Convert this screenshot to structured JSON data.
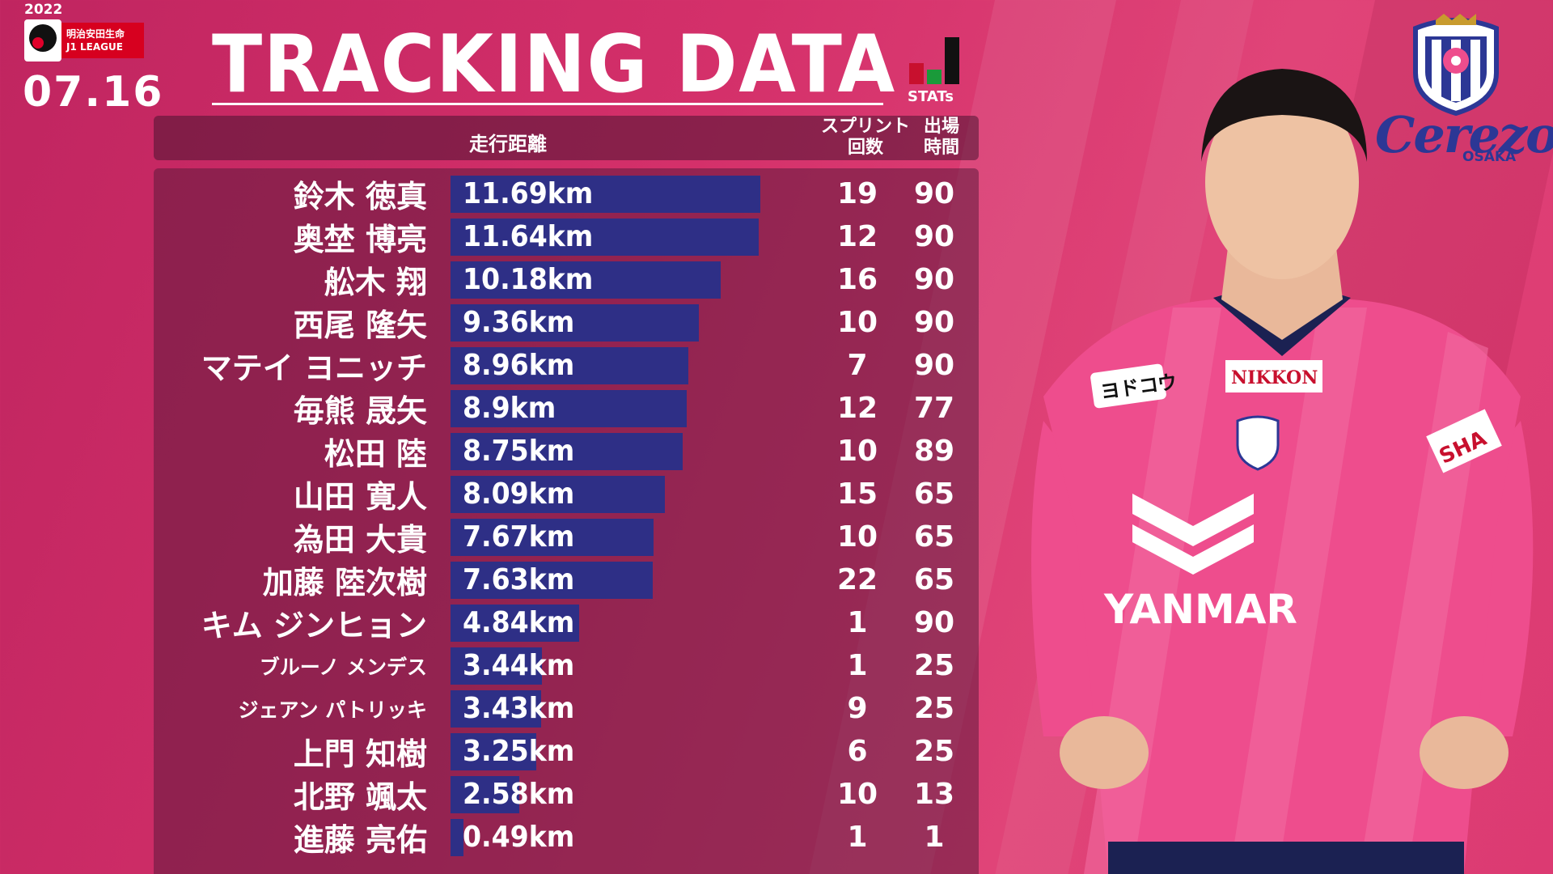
{
  "league": {
    "year": "2022",
    "sponsor": "明治安田生命",
    "name": "J1 LEAGUE",
    "match_date": "07.16"
  },
  "title": "TRACKING DATA",
  "stats_logo_text": "STATs",
  "table": {
    "header_distance": "走行距離",
    "header_sprint": [
      "スプリント",
      "回数"
    ],
    "header_time": [
      "出場",
      "時間"
    ],
    "max_km": 11.69,
    "rows": [
      {
        "name": "鈴木 徳真",
        "distance": "11.69km",
        "km": 11.69,
        "sprints": "19",
        "minutes": "90"
      },
      {
        "name": "奥埜 博亮",
        "distance": "11.64km",
        "km": 11.64,
        "sprints": "12",
        "minutes": "90"
      },
      {
        "name": "舩木 翔",
        "distance": "10.18km",
        "km": 10.18,
        "sprints": "16",
        "minutes": "90"
      },
      {
        "name": "西尾 隆矢",
        "distance": "9.36km",
        "km": 9.36,
        "sprints": "10",
        "minutes": "90"
      },
      {
        "name": "マテイ ヨニッチ",
        "distance": "8.96km",
        "km": 8.96,
        "sprints": "7",
        "minutes": "90"
      },
      {
        "name": "毎熊 晟矢",
        "distance": "8.9km",
        "km": 8.9,
        "sprints": "12",
        "minutes": "77"
      },
      {
        "name": "松田 陸",
        "distance": "8.75km",
        "km": 8.75,
        "sprints": "10",
        "minutes": "89"
      },
      {
        "name": "山田 寛人",
        "distance": "8.09km",
        "km": 8.09,
        "sprints": "15",
        "minutes": "65"
      },
      {
        "name": "為田 大貴",
        "distance": "7.67km",
        "km": 7.67,
        "sprints": "10",
        "minutes": "65"
      },
      {
        "name": "加藤 陸次樹",
        "distance": "7.63km",
        "km": 7.63,
        "sprints": "22",
        "minutes": "65"
      },
      {
        "name": "キム ジンヒョン",
        "distance": "4.84km",
        "km": 4.84,
        "sprints": "1",
        "minutes": "90"
      },
      {
        "name": "ブルーノ メンデス",
        "distance": "3.44km",
        "km": 3.44,
        "sprints": "1",
        "minutes": "25",
        "small": true
      },
      {
        "name": "ジェアン パトリッキ",
        "distance": "3.43km",
        "km": 3.43,
        "sprints": "9",
        "minutes": "25",
        "small": true
      },
      {
        "name": "上門 知樹",
        "distance": "3.25km",
        "km": 3.25,
        "sprints": "6",
        "minutes": "25"
      },
      {
        "name": "北野 颯太",
        "distance": "2.58km",
        "km": 2.58,
        "sprints": "10",
        "minutes": "13"
      },
      {
        "name": "進藤 亮佑",
        "distance": "0.49km",
        "km": 0.49,
        "sprints": "1",
        "minutes": "1"
      }
    ]
  },
  "club": {
    "wordmark": "Cerezo",
    "city": "OSAKA",
    "crest_icon": "cerezo-crest-icon"
  },
  "player_photo": {
    "icon": "player-photo",
    "shirt_sponsor": "YANMAR",
    "chest_sponsor": "NIKKON",
    "left_chest": "ヨドコウ",
    "sleeve": "SHA"
  },
  "colors": {
    "background": "#d4306a",
    "bar": "#2e2f86",
    "panel": "#5f193c",
    "club_blue": "#2c3795",
    "shirt_pink": "#ee4d8d"
  }
}
